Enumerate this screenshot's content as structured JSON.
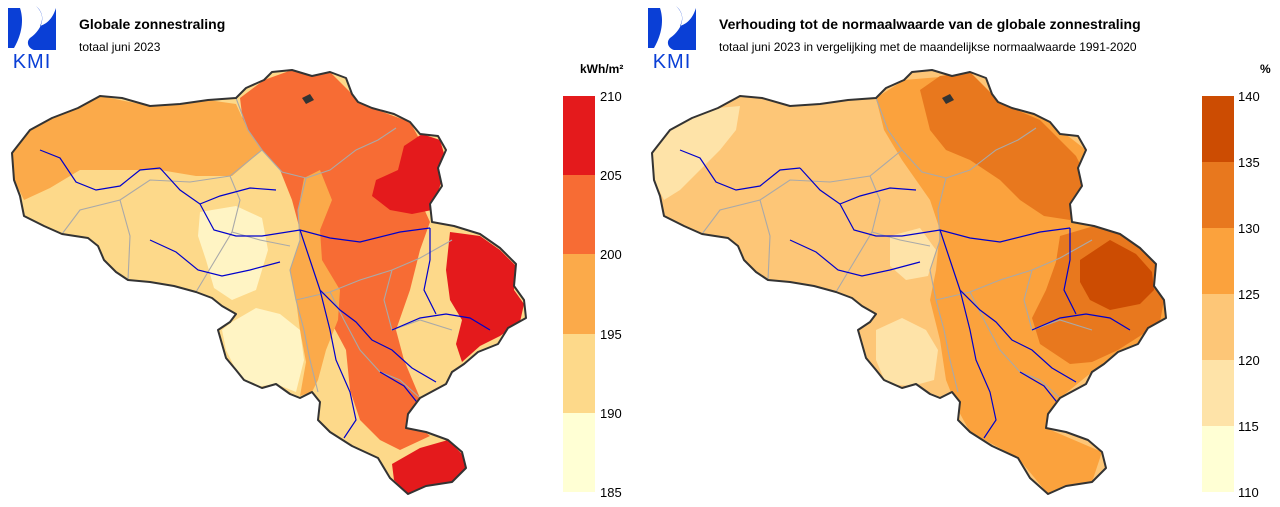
{
  "brand": {
    "logo_text": "KMI"
  },
  "panels": [
    {
      "title": "Globale zonnestraling",
      "subtitle": "totaal juni 2023",
      "unit": "kWh/m²",
      "legend": {
        "ticks": [
          "210",
          "205",
          "200",
          "195",
          "190",
          "185"
        ],
        "colors": [
          "#e41a1c",
          "#f76c34",
          "#fbaa4a",
          "#fdd98a",
          "#ffffd4"
        ]
      },
      "map_colors": {
        "base": "#fdd98a",
        "low": "#fff4c4",
        "mid": "#fbaa4a",
        "high": "#f76c34",
        "max": "#e41a1c"
      }
    },
    {
      "title": "Verhouding tot de normaalwaarde van de globale zonnestraling",
      "subtitle": "totaal juni 2023 in vergelijking met de maandelijkse normaalwaarde 1991-2020",
      "unit": "%",
      "legend": {
        "ticks": [
          "140",
          "135",
          "130",
          "125",
          "120",
          "115",
          "110"
        ],
        "colors": [
          "#cc4c02",
          "#e8781e",
          "#fba23d",
          "#fdc677",
          "#fee3a8",
          "#ffffd4"
        ]
      },
      "map_colors": {
        "base": "#fdc677",
        "low": "#fee3a8",
        "mid": "#fba23d",
        "high": "#e8781e",
        "max": "#cc4c02"
      }
    }
  ],
  "map_style": {
    "border": "#333333",
    "provinces": "#a9a9a9",
    "rivers": "#0000cc"
  }
}
